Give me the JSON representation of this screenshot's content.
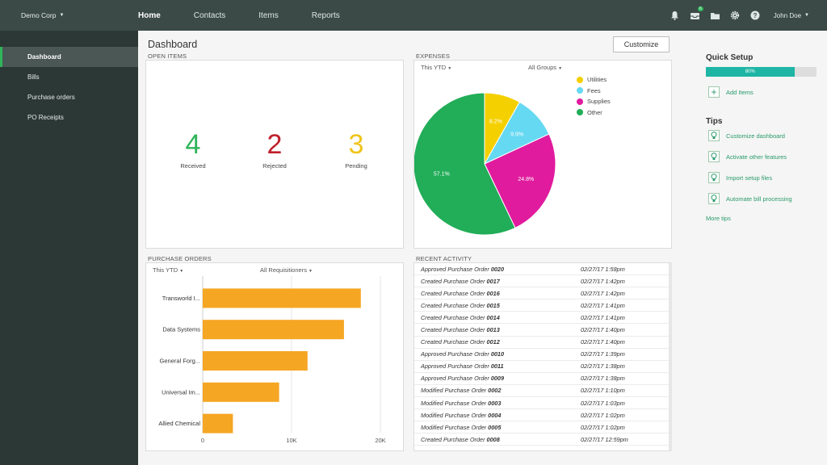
{
  "topbar": {
    "org": "Demo Corp",
    "nav": [
      "Home",
      "Contacts",
      "Items",
      "Reports"
    ],
    "notification_count": "6",
    "user": "John Doe"
  },
  "sidebar": {
    "items": [
      {
        "label": "Dashboard"
      },
      {
        "label": "Bills"
      },
      {
        "label": "Purchase orders"
      },
      {
        "label": "PO Receipts"
      }
    ]
  },
  "main": {
    "title": "Dashboard",
    "customize_label": "Customize"
  },
  "open_items": {
    "label": "OPEN ITEMS",
    "stats": [
      {
        "value": "4",
        "label": "Received",
        "color": "#2fb45a"
      },
      {
        "value": "2",
        "label": "Rejected",
        "color": "#c0202a"
      },
      {
        "value": "3",
        "label": "Pending",
        "color": "#f0c419"
      }
    ]
  },
  "expenses": {
    "label": "EXPENSES",
    "filter1": "This YTD",
    "filter2": "All Groups"
  },
  "purchase_orders": {
    "label": "PURCHASE ORDERS",
    "filter1": "This YTD",
    "filter2": "All Requisitioners"
  },
  "chart_data": [
    {
      "type": "pie",
      "title": "",
      "slices": [
        {
          "name": "Utilities",
          "value": 8.2,
          "label": "8.2%",
          "color": "#f5d000"
        },
        {
          "name": "Fees",
          "value": 9.9,
          "label": "9.9%",
          "color": "#66d9f2"
        },
        {
          "name": "Supplies",
          "value": 24.8,
          "label": "24.8%",
          "color": "#e01b9e"
        },
        {
          "name": "Other",
          "value": 57.1,
          "label": "57.1%",
          "color": "#22ad58"
        }
      ]
    },
    {
      "type": "bar",
      "orientation": "horizontal",
      "title": "",
      "categories": [
        "Transworld I...",
        "Data Systems",
        "General Forg...",
        "Universal Im...",
        "Allied Chemical"
      ],
      "values": [
        17800,
        15900,
        11800,
        8600,
        3400
      ],
      "xlim": [
        0,
        20000
      ],
      "ticks": [
        0,
        10000,
        20000
      ],
      "tick_labels": [
        "0",
        "10K",
        "20K"
      ],
      "grid": true,
      "color": "#f5a623"
    }
  ],
  "recent_activity": {
    "label": "RECENT ACTIVITY",
    "rows": [
      {
        "action": "Approved Purchase Order",
        "id": "0020",
        "time": "02/27/17 1:58pm"
      },
      {
        "action": "Created Purchase Order",
        "id": "0017",
        "time": "02/27/17 1:42pm"
      },
      {
        "action": "Created Purchase Order",
        "id": "0016",
        "time": "02/27/17 1:42pm"
      },
      {
        "action": "Created Purchase Order",
        "id": "0015",
        "time": "02/27/17 1:41pm"
      },
      {
        "action": "Created Purchase Order",
        "id": "0014",
        "time": "02/27/17 1:41pm"
      },
      {
        "action": "Created Purchase Order",
        "id": "0013",
        "time": "02/27/17 1:40pm"
      },
      {
        "action": "Created Purchase Order",
        "id": "0012",
        "time": "02/27/17 1:40pm"
      },
      {
        "action": "Approved Purchase Order",
        "id": "0010",
        "time": "02/27/17 1:39pm"
      },
      {
        "action": "Approved Purchase Order",
        "id": "0011",
        "time": "02/27/17 1:38pm"
      },
      {
        "action": "Approved Purchase Order",
        "id": "0009",
        "time": "02/27/17 1:38pm"
      },
      {
        "action": "Modified Purchase Order",
        "id": "0002",
        "time": "02/27/17 1:10pm"
      },
      {
        "action": "Modified Purchase Order",
        "id": "0003",
        "time": "02/27/17 1:03pm"
      },
      {
        "action": "Modified Purchase Order",
        "id": "0004",
        "time": "02/27/17 1:02pm"
      },
      {
        "action": "Modified Purchase Order",
        "id": "0005",
        "time": "02/27/17 1:02pm"
      },
      {
        "action": "Created Purchase Order",
        "id": "0008",
        "time": "02/27/17 12:59pm"
      }
    ]
  },
  "quick_setup": {
    "title": "Quick Setup",
    "progress": 0.8,
    "progress_label": "80%",
    "add_items": "Add Items"
  },
  "tips": {
    "title": "Tips",
    "items": [
      "Customize dashboard",
      "Activate other features",
      "Import setup files",
      "Automate bill processing"
    ],
    "more": "More tips"
  }
}
